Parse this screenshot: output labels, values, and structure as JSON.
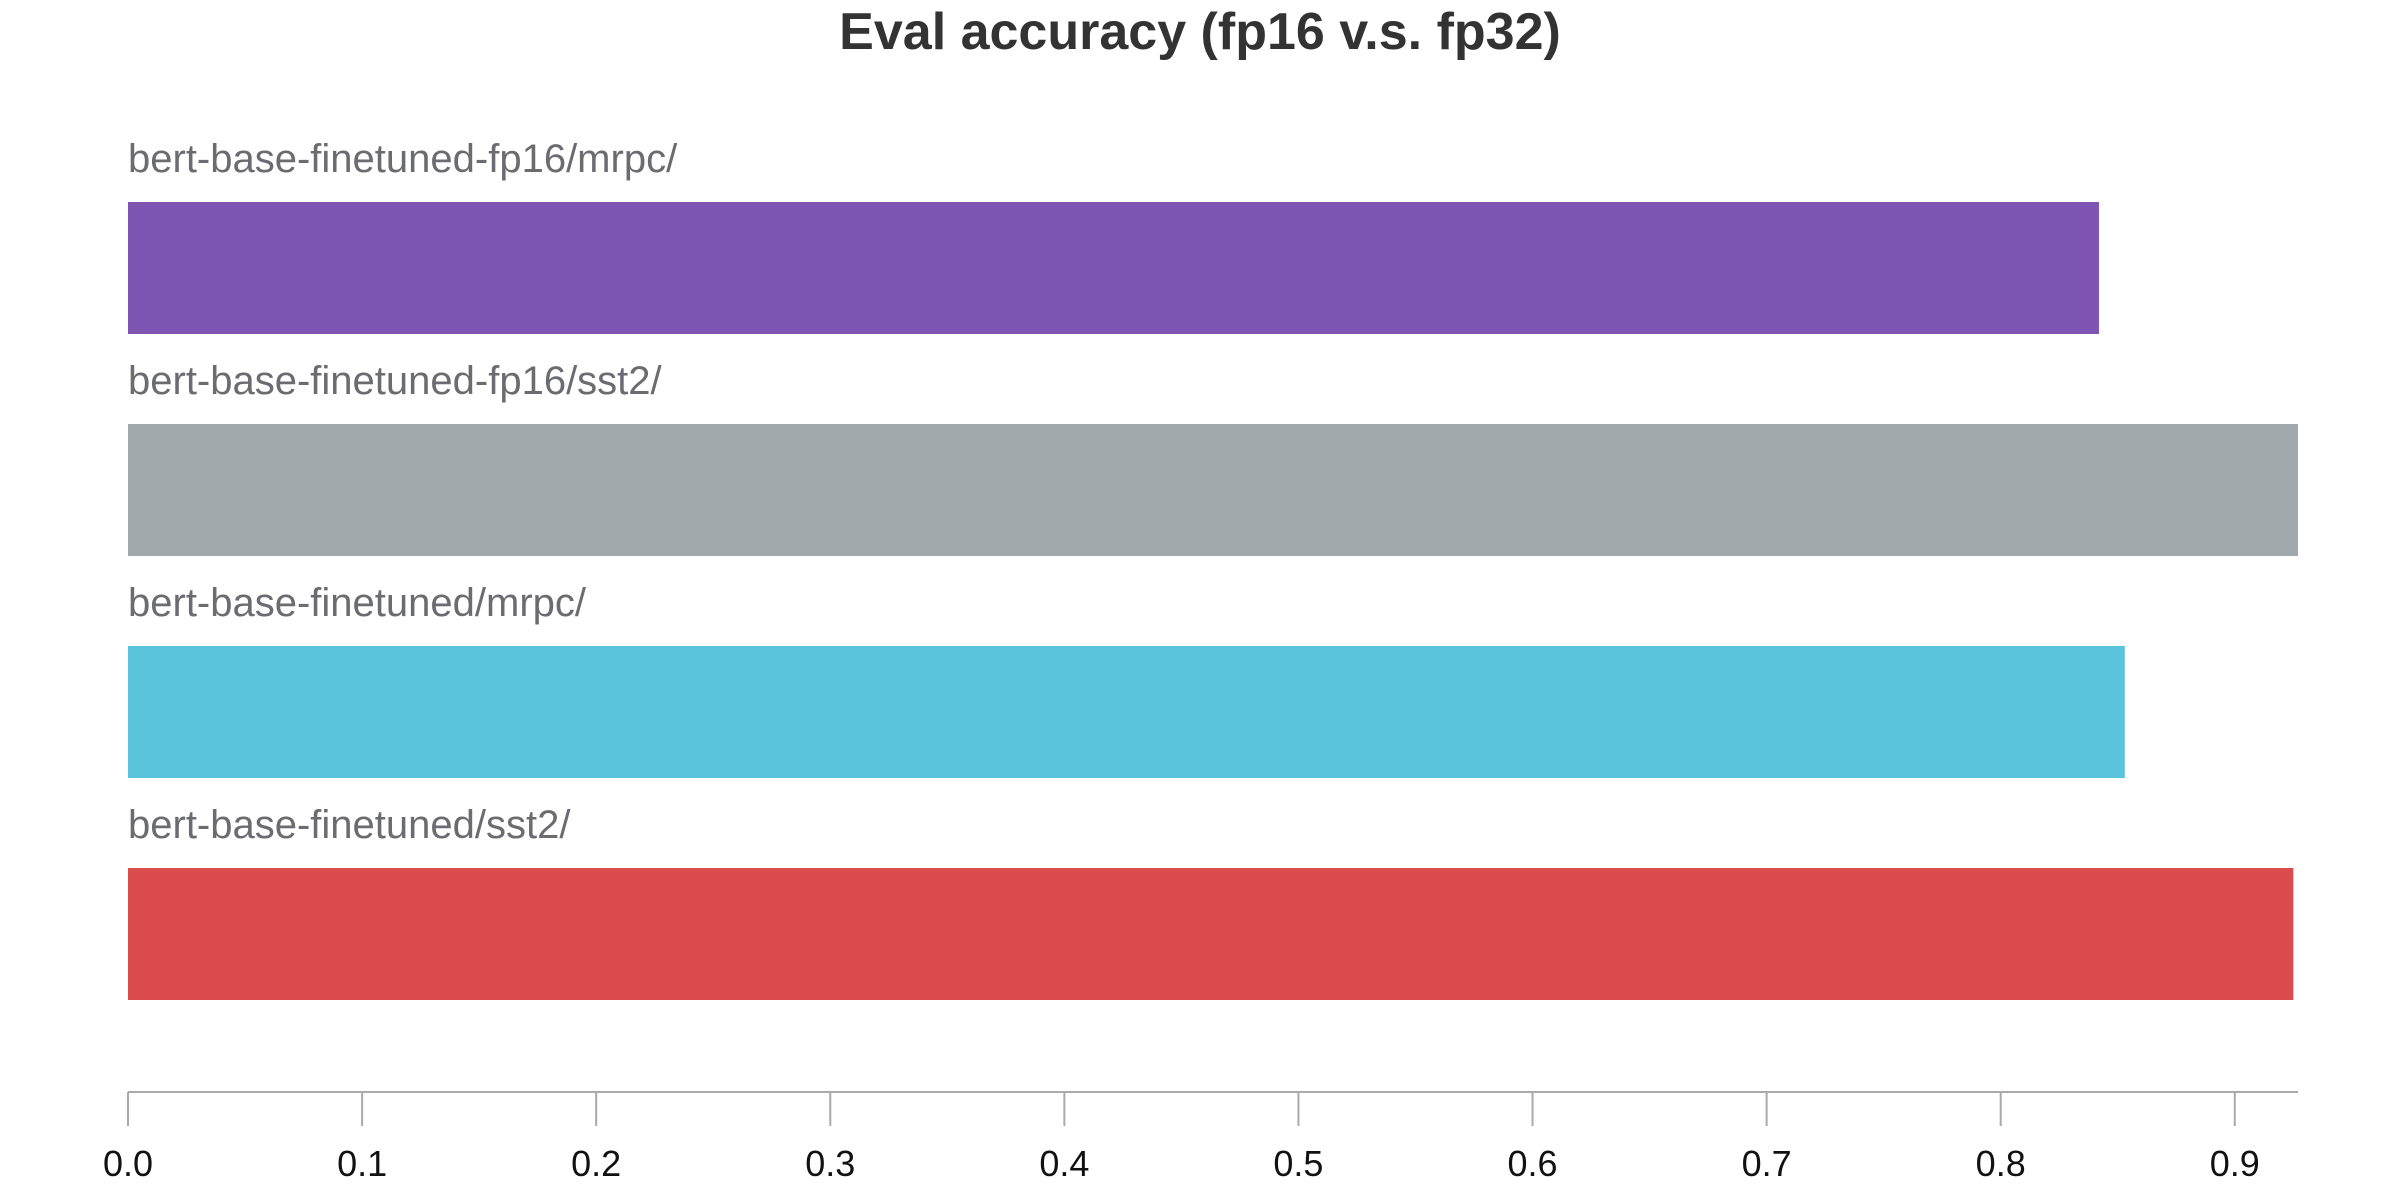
{
  "chart_data": {
    "type": "bar",
    "orientation": "horizontal",
    "title": "Eval accuracy (fp16 v.s. fp32)",
    "xlabel": "",
    "ylabel": "",
    "categories": [
      "bert-base-finetuned-fp16/mrpc/",
      "bert-base-finetuned-fp16/sst2/",
      "bert-base-finetuned/mrpc/",
      "bert-base-finetuned/sst2/"
    ],
    "values": [
      0.842,
      0.927,
      0.853,
      0.925
    ],
    "colors": [
      "#7f55b4",
      "#a2a9ac",
      "#5ac4dc",
      "#db4d4d"
    ],
    "xlim": [
      0,
      0.927
    ],
    "xticks": [
      0.0,
      0.1,
      0.2,
      0.3,
      0.4,
      0.5,
      0.6,
      0.7,
      0.8,
      0.9
    ],
    "xtick_labels": [
      "0.0",
      "0.1",
      "0.2",
      "0.3",
      "0.4",
      "0.5",
      "0.6",
      "0.7",
      "0.8",
      "0.9"
    ],
    "grid": false,
    "legend": "none"
  }
}
